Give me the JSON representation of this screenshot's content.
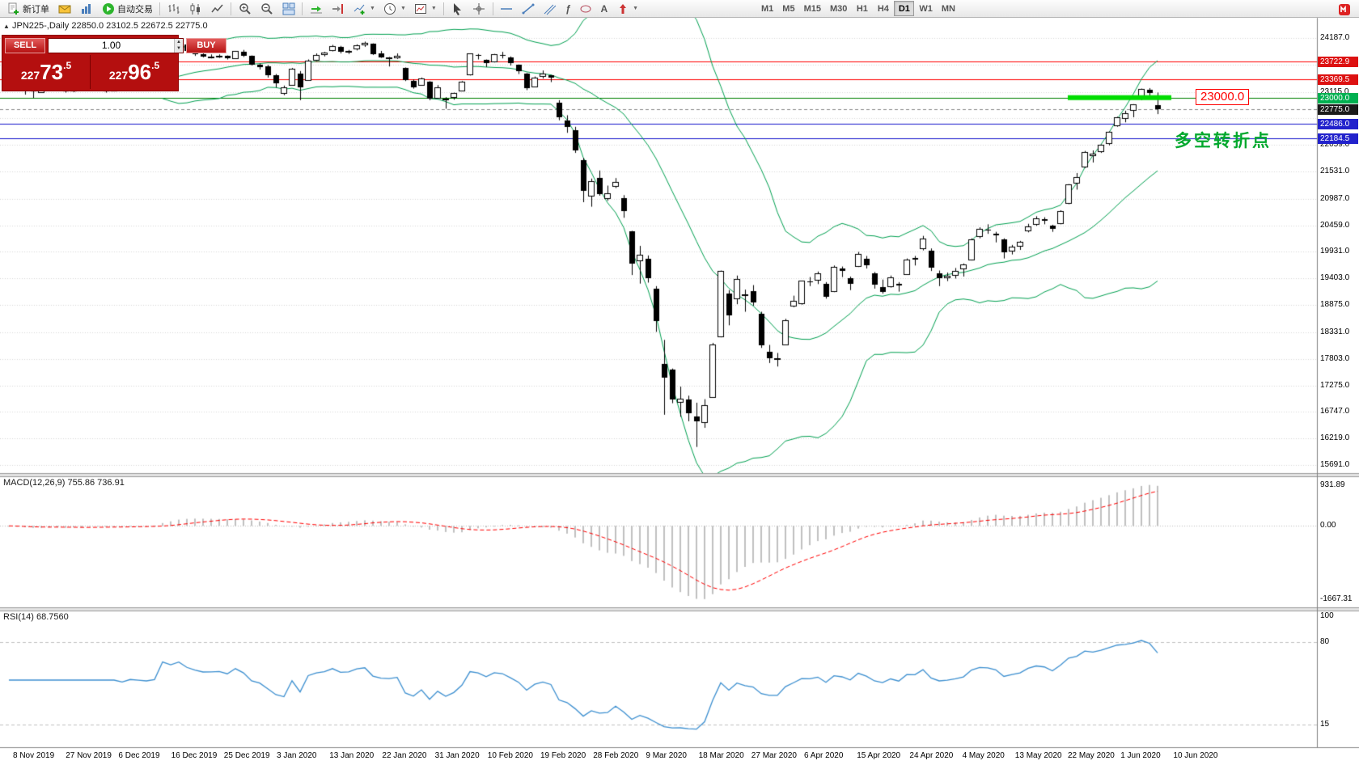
{
  "toolbar": {
    "new_order_label": "新订单",
    "auto_trading_label": "自动交易",
    "timeframes": [
      "M1",
      "M5",
      "M15",
      "M30",
      "H1",
      "H4",
      "D1",
      "W1",
      "MN"
    ],
    "active_timeframe": "D1"
  },
  "trade_panel": {
    "sell_label": "SELL",
    "buy_label": "BUY",
    "volume": "1.00",
    "sell_price_prefix": "227",
    "sell_price_big": "73",
    "sell_price_sup": ".5",
    "buy_price_prefix": "227",
    "buy_price_big": "96",
    "buy_price_sup": ".5"
  },
  "chart": {
    "title": "JPN225-,Daily 22850.0 23102.5 22672.5 22775.0",
    "macd_header": "MACD(12,26,9) 755.86 736.91",
    "rsi_header": "RSI(14) 68.7560"
  },
  "chart_data": {
    "type": "candlestick",
    "symbol": "JPN225-",
    "timeframe": "Daily",
    "ohlc_display": {
      "open": 22850.0,
      "high": 23102.5,
      "low": 22672.5,
      "close": 22775.0
    },
    "candles": [
      [
        23280,
        23430,
        23250,
        23416
      ],
      [
        23420,
        23450,
        23270,
        23292
      ],
      [
        23290,
        23300,
        23060,
        23148
      ],
      [
        23150,
        23180,
        22995,
        23113
      ],
      [
        23115,
        23340,
        23100,
        23293
      ],
      [
        23300,
        23410,
        23280,
        23380
      ],
      [
        23385,
        23430,
        23330,
        23373
      ],
      [
        23370,
        23390,
        23100,
        23126
      ],
      [
        23130,
        23420,
        23110,
        23409
      ],
      [
        23400,
        23430,
        23250,
        23294
      ],
      [
        23300,
        23560,
        23290,
        23529
      ],
      [
        23520,
        23540,
        23300,
        23379
      ],
      [
        23370,
        23390,
        23100,
        23135
      ],
      [
        23140,
        23330,
        23130,
        23300
      ],
      [
        23310,
        23390,
        23270,
        23354
      ],
      [
        23360,
        23460,
        23340,
        23430
      ],
      [
        23425,
        23450,
        23360,
        23410
      ],
      [
        23405,
        23440,
        23350,
        23391
      ],
      [
        23395,
        23480,
        23360,
        23424
      ],
      [
        23600,
        24050,
        23580,
        24023
      ],
      [
        24000,
        24040,
        23900,
        23952
      ],
      [
        23960,
        24091,
        23940,
        24066
      ],
      [
        24060,
        24080,
        23910,
        23934
      ],
      [
        23930,
        23970,
        23830,
        23864
      ],
      [
        23870,
        23950,
        23800,
        23817
      ],
      [
        23820,
        23860,
        23780,
        23821
      ],
      [
        23825,
        23860,
        23790,
        23830
      ],
      [
        23828,
        23840,
        23760,
        23782
      ],
      [
        23785,
        23930,
        23780,
        23924
      ],
      [
        23920,
        23950,
        23810,
        23837
      ],
      [
        23830,
        23840,
        23640,
        23656
      ],
      [
        23650,
        23680,
        23560,
        23600
      ],
      [
        23620,
        23650,
        23400,
        23450
      ],
      [
        23440,
        23470,
        23200,
        23276
      ],
      [
        23100,
        23240,
        23050,
        23205
      ],
      [
        23250,
        23590,
        23240,
        23576
      ],
      [
        23480,
        23530,
        22950,
        23204
      ],
      [
        23350,
        23760,
        23340,
        23740
      ],
      [
        23750,
        23880,
        23730,
        23851
      ],
      [
        23860,
        23910,
        23820,
        23900
      ],
      [
        23950,
        24050,
        23920,
        24025
      ],
      [
        24010,
        24030,
        23880,
        23916
      ],
      [
        23920,
        23950,
        23870,
        23933
      ],
      [
        23980,
        24060,
        23940,
        24041
      ],
      [
        24050,
        24115,
        24010,
        24084
      ],
      [
        24070,
        24080,
        23850,
        23864
      ],
      [
        23880,
        23930,
        23790,
        23803
      ],
      [
        23790,
        23810,
        23620,
        23795
      ],
      [
        23800,
        23880,
        23770,
        23827
      ],
      [
        23590,
        23600,
        23330,
        23344
      ],
      [
        23340,
        23360,
        23180,
        23216
      ],
      [
        23250,
        23400,
        23240,
        23379
      ],
      [
        23320,
        23330,
        22950,
        22977
      ],
      [
        23000,
        23250,
        22990,
        23205
      ],
      [
        22970,
        23010,
        22780,
        22972
      ],
      [
        23000,
        23100,
        22960,
        23085
      ],
      [
        23150,
        23330,
        23130,
        23320
      ],
      [
        23450,
        23880,
        23440,
        23874
      ],
      [
        23850,
        23870,
        23760,
        23828
      ],
      [
        23750,
        23760,
        23610,
        23686
      ],
      [
        23720,
        23870,
        23700,
        23861
      ],
      [
        23850,
        23910,
        23780,
        23828
      ],
      [
        23800,
        23820,
        23640,
        23687
      ],
      [
        23650,
        23660,
        23470,
        23523
      ],
      [
        23480,
        23490,
        23150,
        23193
      ],
      [
        23220,
        23420,
        23210,
        23401
      ],
      [
        23430,
        23540,
        23380,
        23479
      ],
      [
        23440,
        23450,
        23310,
        23387
      ],
      [
        22900,
        22950,
        22550,
        22605
      ],
      [
        22550,
        22650,
        22300,
        22426
      ],
      [
        22350,
        22420,
        21900,
        21948
      ],
      [
        21750,
        21800,
        20920,
        21143
      ],
      [
        21050,
        21390,
        20830,
        21344
      ],
      [
        21400,
        21550,
        21050,
        21083
      ],
      [
        21000,
        21250,
        20950,
        21100
      ],
      [
        21250,
        21400,
        21200,
        21329
      ],
      [
        21000,
        21060,
        20610,
        20750
      ],
      [
        20340,
        20350,
        19470,
        19699
      ],
      [
        19750,
        20050,
        19300,
        19867
      ],
      [
        19800,
        19860,
        19320,
        19416
      ],
      [
        19200,
        19250,
        18340,
        18560
      ],
      [
        17700,
        18180,
        16690,
        17431
      ],
      [
        17590,
        17610,
        16920,
        17002
      ],
      [
        16950,
        17250,
        16650,
        17011
      ],
      [
        17000,
        17070,
        16560,
        16727
      ],
      [
        16650,
        16930,
        16050,
        16553
      ],
      [
        16550,
        17000,
        16430,
        16888
      ],
      [
        17050,
        18120,
        17030,
        18092
      ],
      [
        18250,
        19560,
        18230,
        19547
      ],
      [
        19100,
        19170,
        18470,
        18665
      ],
      [
        19000,
        19460,
        18890,
        19389
      ],
      [
        19080,
        19180,
        18740,
        19085
      ],
      [
        19150,
        19270,
        18860,
        18917
      ],
      [
        18700,
        18740,
        18020,
        18065
      ],
      [
        17950,
        18080,
        17720,
        17818
      ],
      [
        17810,
        17920,
        17650,
        17820
      ],
      [
        18100,
        18600,
        18080,
        18576
      ],
      [
        18850,
        19060,
        18830,
        18950
      ],
      [
        18900,
        19360,
        18880,
        19353
      ],
      [
        19350,
        19430,
        19250,
        19345
      ],
      [
        19370,
        19540,
        19290,
        19499
      ],
      [
        19300,
        19330,
        19000,
        19043
      ],
      [
        19150,
        19660,
        19130,
        19638
      ],
      [
        19600,
        19640,
        19430,
        19550
      ],
      [
        19400,
        19440,
        19170,
        19290
      ],
      [
        19650,
        19930,
        19630,
        19897
      ],
      [
        19800,
        19850,
        19600,
        19669
      ],
      [
        19500,
        19530,
        19200,
        19280
      ],
      [
        19230,
        19380,
        19100,
        19138
      ],
      [
        19250,
        19460,
        19220,
        19429
      ],
      [
        19300,
        19330,
        19140,
        19262
      ],
      [
        19500,
        19800,
        19480,
        19783
      ],
      [
        19810,
        19850,
        19660,
        19771
      ],
      [
        20000,
        20250,
        19960,
        20194
      ],
      [
        19950,
        20000,
        19550,
        19619
      ],
      [
        19500,
        19560,
        19250,
        19400
      ],
      [
        19420,
        19520,
        19350,
        19450
      ],
      [
        19470,
        19610,
        19400,
        19550
      ],
      [
        19600,
        19700,
        19440,
        19675
      ],
      [
        19780,
        20200,
        19760,
        20179
      ],
      [
        20250,
        20420,
        20200,
        20391
      ],
      [
        20380,
        20480,
        20290,
        20366
      ],
      [
        20300,
        20330,
        20120,
        20267
      ],
      [
        20180,
        20200,
        19800,
        19915
      ],
      [
        19950,
        20070,
        19880,
        20037
      ],
      [
        20050,
        20150,
        19970,
        20134
      ],
      [
        20350,
        20490,
        20320,
        20433
      ],
      [
        20480,
        20640,
        20450,
        20595
      ],
      [
        20580,
        20620,
        20480,
        20552
      ],
      [
        20450,
        20470,
        20330,
        20388
      ],
      [
        20500,
        20760,
        20480,
        20741
      ],
      [
        20900,
        21280,
        20880,
        21271
      ],
      [
        21300,
        21500,
        21170,
        21419
      ],
      [
        21620,
        21940,
        21600,
        21916
      ],
      [
        21850,
        21950,
        21710,
        21878
      ],
      [
        21940,
        22070,
        21900,
        22062
      ],
      [
        22100,
        22330,
        22050,
        22326
      ],
      [
        22450,
        22620,
        22420,
        22614
      ],
      [
        22600,
        22740,
        22510,
        22696
      ],
      [
        22750,
        22870,
        22610,
        22864
      ],
      [
        23000,
        23180,
        22950,
        23178
      ],
      [
        23150,
        23190,
        22990,
        23091
      ],
      [
        22850,
        23102.5,
        22672.5,
        22775
      ]
    ],
    "x_labels": [
      "8 Nov 2019",
      "27 Nov 2019",
      "6 Dec 2019",
      "16 Dec 2019",
      "25 Dec 2019",
      "3 Jan 2020",
      "13 Jan 2020",
      "22 Jan 2020",
      "31 Jan 2020",
      "10 Feb 2020",
      "19 Feb 2020",
      "28 Feb 2020",
      "9 Mar 2020",
      "18 Mar 2020",
      "27 Mar 2020",
      "6 Apr 2020",
      "15 Apr 2020",
      "24 Apr 2020",
      "4 May 2020",
      "13 May 2020",
      "22 May 2020",
      "1 Jun 2020",
      "10 Jun 2020"
    ],
    "price_axis": {
      "grid_labels": [
        24187.0,
        23115.0,
        22059.0,
        21531.0,
        20987.0,
        20459.0,
        19931.0,
        19403.0,
        18875.0,
        18331.0,
        17803.0,
        17275.0,
        16747.0,
        16219.0,
        15691.0
      ],
      "hidden_gridlines": [
        23651.0,
        22587.0
      ],
      "red_lines": [
        23722.9,
        23369.5
      ],
      "green_line": 23000.0,
      "current_price": 22775.0,
      "blue_lines": [
        22486.0,
        22184.5
      ]
    },
    "objects": {
      "highlight_segment": {
        "price": 23000.0,
        "label": "23000.0"
      },
      "annotation_cn": "多空转折点"
    },
    "indicators": {
      "bollinger": {
        "period": 20,
        "deviation": 2
      },
      "macd": {
        "fast": 12,
        "slow": 26,
        "smoothing": 9,
        "main": 755.86,
        "signal": 736.91,
        "axis": [
          931.89,
          0,
          -1667.31
        ]
      },
      "rsi": {
        "period": 14,
        "value": 68.756,
        "axis": [
          100,
          80,
          15
        ],
        "levels": [
          80,
          15
        ]
      }
    },
    "colors": {
      "up_candle": "#ffffff",
      "down_candle": "#000000",
      "candle_border": "#000000",
      "bollinger": "#00a050",
      "red_line": "#ff0000",
      "blue_line": "#1414cc",
      "green_line": "#008000",
      "current_line": "#888888",
      "highlight": "#00dd00",
      "grid": "#d7d7d7",
      "macd_hist": "#c0c0c0",
      "macd_signal": "#ff0000",
      "rsi_line": "#3c8fd0",
      "badge_red": "#dd1111",
      "badge_green": "#00b050",
      "badge_blue": "#2222cc",
      "badge_current": "#1a1a1a",
      "annotation_red": "#ff0000",
      "annotation_green": "#00a82d"
    }
  }
}
